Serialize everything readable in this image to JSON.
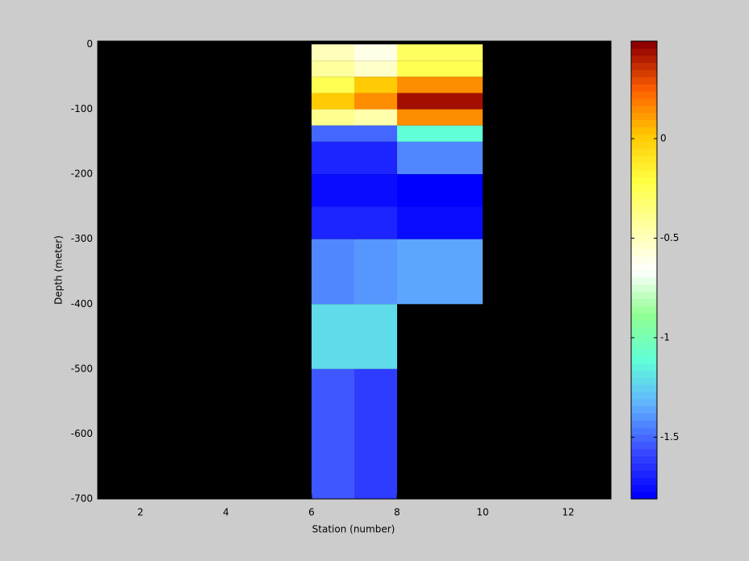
{
  "chart_data": {
    "type": "heatmap",
    "x_label": "Station (number)",
    "y_label": "Depth (meter)",
    "xlim": [
      1,
      13
    ],
    "ylim": [
      -700,
      5
    ],
    "xticks": [
      2,
      4,
      6,
      8,
      10,
      12
    ],
    "yticks": [
      0,
      -100,
      -200,
      -300,
      -400,
      -500,
      -600,
      -700
    ],
    "x_edges": [
      6,
      7,
      8,
      10
    ],
    "y_edges": [
      0,
      -25,
      -50,
      -75,
      -100,
      -125,
      -150,
      -200,
      -250,
      -300,
      -400,
      -500,
      -700
    ],
    "values": [
      [
        -0.5,
        -0.6,
        -0.3
      ],
      [
        -0.42,
        -0.55,
        -0.25
      ],
      [
        -0.25,
        0.0,
        0.15
      ],
      [
        0.02,
        0.15,
        0.45
      ],
      [
        -0.38,
        -0.45,
        0.15
      ],
      [
        -1.5,
        -1.5,
        -1.1
      ],
      [
        -1.7,
        -1.7,
        -1.45
      ],
      [
        -1.75,
        -1.75,
        -1.8
      ],
      [
        -1.7,
        -1.7,
        -1.75
      ],
      [
        -1.45,
        -1.4,
        -1.35
      ],
      [
        -1.2,
        -1.2,
        null
      ],
      [
        -1.55,
        -1.6,
        null
      ]
    ],
    "missing_color": "#000000",
    "colorbar": {
      "clim": [
        -1.81,
        0.49
      ],
      "ticks": [
        0,
        -0.5,
        -1,
        -1.5
      ],
      "levels": 64,
      "colormap": [
        "#0000ff",
        "#3a4cff",
        "#60b0ff",
        "#60ffd8",
        "#90ff90",
        "#ffffff",
        "#ffffa0",
        "#ffff40",
        "#ffc800",
        "#ff6000",
        "#900000"
      ]
    }
  }
}
